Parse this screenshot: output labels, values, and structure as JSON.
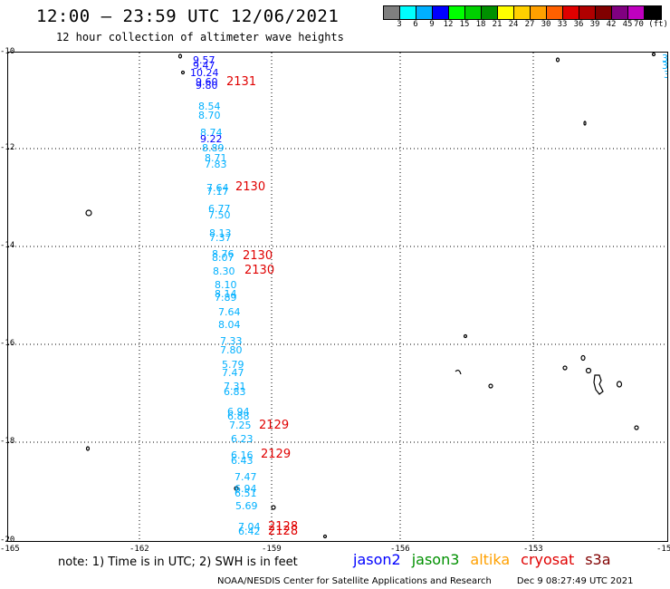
{
  "header": {
    "title": "12:00 — 23:59 UTC 12/06/2021",
    "subtitle": "12 hour collection of altimeter wave heights"
  },
  "colorbar": {
    "colors": [
      "#7f7f7f",
      "#00ffff",
      "#00b0ff",
      "#0000ff",
      "#00ff00",
      "#00d000",
      "#009000",
      "#ffff00",
      "#ffd000",
      "#ffa000",
      "#ff6000",
      "#e00000",
      "#b00000",
      "#800000",
      "#800080",
      "#c000c0",
      "#000000"
    ],
    "labels": [
      "3",
      "6",
      "9",
      "12",
      "15",
      "18",
      "21",
      "24",
      "27",
      "30",
      "33",
      "36",
      "39",
      "42",
      "45",
      "70 (ft)"
    ]
  },
  "axes": {
    "y_labels": [
      "-10",
      "-12",
      "-14",
      "-16",
      "-18",
      "-20"
    ],
    "x_labels": [
      "-165",
      "-162",
      "-159",
      "-156",
      "-153",
      "-15"
    ]
  },
  "wave_heights": [
    {
      "text": "9.57",
      "color": "#0000ff"
    },
    {
      "text": "9.47",
      "color": "#0000ff"
    },
    {
      "text": "10.24",
      "color": "#0000ff"
    },
    {
      "text": "9.60",
      "color": "#0000ff"
    },
    {
      "text": "9.80",
      "color": "#0000ff"
    },
    {
      "text": "8.54",
      "color": "#00b0ff"
    },
    {
      "text": "8.70",
      "color": "#00b0ff"
    },
    {
      "text": "8.74",
      "color": "#00b0ff"
    },
    {
      "text": "9.22",
      "color": "#0000ff"
    },
    {
      "text": "8.89",
      "color": "#00b0ff"
    },
    {
      "text": "8.71",
      "color": "#00b0ff"
    },
    {
      "text": "7.83",
      "color": "#00b0ff"
    },
    {
      "text": "7.64",
      "color": "#00b0ff"
    },
    {
      "text": "7.17",
      "color": "#00b0ff"
    },
    {
      "text": "6.77",
      "color": "#00b0ff"
    },
    {
      "text": "7.50",
      "color": "#00b0ff"
    },
    {
      "text": "8.13",
      "color": "#00b0ff"
    },
    {
      "text": "7.37",
      "color": "#00b0ff"
    },
    {
      "text": "8.76",
      "color": "#00b0ff"
    },
    {
      "text": "8.07",
      "color": "#00b0ff"
    },
    {
      "text": "8.30",
      "color": "#00b0ff"
    },
    {
      "text": "8.10",
      "color": "#00b0ff"
    },
    {
      "text": "8.14",
      "color": "#00b0ff"
    },
    {
      "text": "7.89",
      "color": "#00b0ff"
    },
    {
      "text": "7.64",
      "color": "#00b0ff"
    },
    {
      "text": "8.04",
      "color": "#00b0ff"
    },
    {
      "text": "7.33",
      "color": "#00b0ff"
    },
    {
      "text": "7.80",
      "color": "#00b0ff"
    },
    {
      "text": "5.79",
      "color": "#00b0ff"
    },
    {
      "text": "7.47",
      "color": "#00b0ff"
    },
    {
      "text": "7.31",
      "color": "#00b0ff"
    },
    {
      "text": "6.83",
      "color": "#00b0ff"
    },
    {
      "text": "6.94",
      "color": "#00b0ff"
    },
    {
      "text": "6.88",
      "color": "#00b0ff"
    },
    {
      "text": "7.25",
      "color": "#00b0ff"
    },
    {
      "text": "6.23",
      "color": "#00b0ff"
    },
    {
      "text": "6.16",
      "color": "#00b0ff"
    },
    {
      "text": "6.43",
      "color": "#00b0ff"
    },
    {
      "text": "7.47",
      "color": "#00b0ff"
    },
    {
      "text": "6.94",
      "color": "#00b0ff"
    },
    {
      "text": "6.51",
      "color": "#00b0ff"
    },
    {
      "text": "5.69",
      "color": "#00b0ff"
    },
    {
      "text": "7.04",
      "color": "#00b0ff"
    },
    {
      "text": "6.42",
      "color": "#00b0ff"
    },
    {
      "text": "3.",
      "color": "#00b0ff"
    },
    {
      "text": "3",
      "color": "#00b0ff"
    },
    {
      "text": "3",
      "color": "#00b0ff"
    }
  ],
  "pass_times": [
    {
      "text": "2131",
      "color": "#e00000"
    },
    {
      "text": "2130",
      "color": "#e00000"
    },
    {
      "text": "2130",
      "color": "#e00000"
    },
    {
      "text": "2130",
      "color": "#e00000"
    },
    {
      "text": "2129",
      "color": "#e00000"
    },
    {
      "text": "2129",
      "color": "#e00000"
    },
    {
      "text": "2128",
      "color": "#e00000"
    },
    {
      "text": "2128",
      "color": "#e00000"
    }
  ],
  "footer": {
    "note": "note: 1) Time is in UTC; 2) SWH is in feet",
    "satellites": [
      {
        "name": "jason2",
        "color": "#0000ff"
      },
      {
        "name": "jason3",
        "color": "#009000"
      },
      {
        "name": "altika",
        "color": "#ffa000"
      },
      {
        "name": "cryosat",
        "color": "#e00000"
      },
      {
        "name": "s3a",
        "color": "#800000"
      }
    ],
    "credit": "NOAA/NESDIS Center for Satellite Applications and Research",
    "timestamp": "Dec  9 08:27:49 UTC 2021"
  }
}
